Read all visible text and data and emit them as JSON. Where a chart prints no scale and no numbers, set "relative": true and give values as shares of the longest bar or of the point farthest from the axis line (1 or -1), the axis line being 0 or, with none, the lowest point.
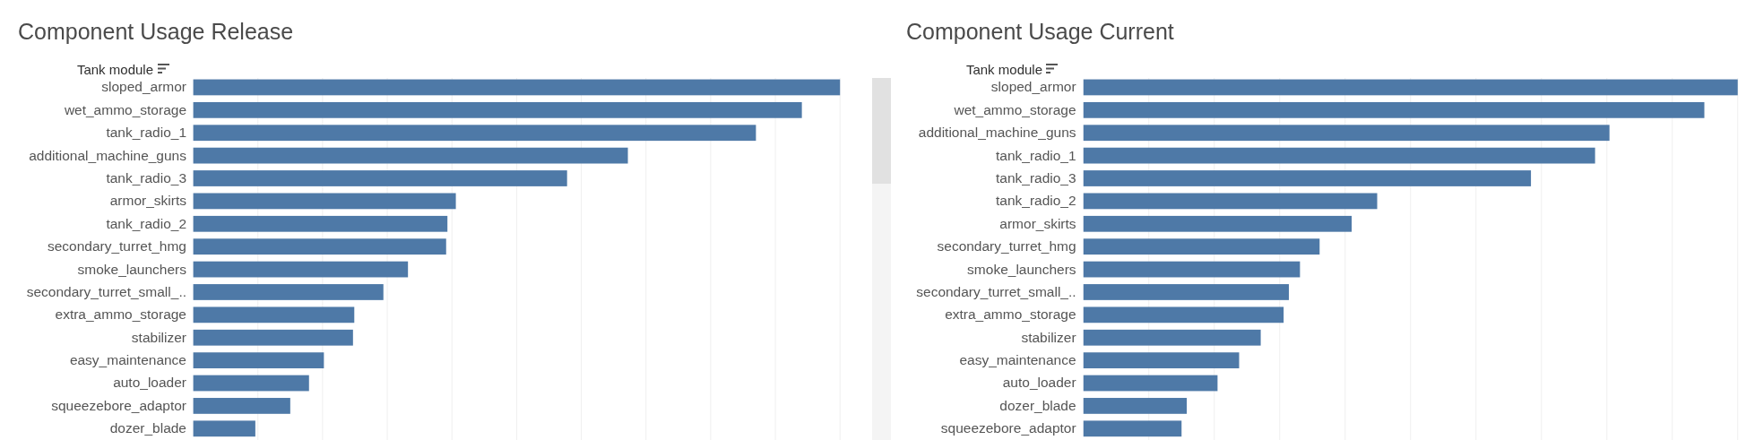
{
  "chart_data": [
    {
      "type": "bar",
      "title": "Component Usage Release",
      "ylabel": "Tank module",
      "orientation": "horizontal",
      "relative": true,
      "categories": [
        "sloped_armor",
        "wet_ammo_storage",
        "tank_radio_1",
        "additional_machine_guns",
        "tank_radio_3",
        "armor_skirts",
        "tank_radio_2",
        "secondary_turret_hmg",
        "smoke_launchers",
        "secondary_turret_small_..",
        "extra_ammo_storage",
        "stabilizer",
        "easy_maintenance",
        "auto_loader",
        "squeezebore_adaptor",
        "dozer_blade"
      ],
      "values": [
        1,
        0.941,
        0.87,
        0.672,
        0.578,
        0.406,
        0.393,
        0.391,
        0.332,
        0.294,
        0.249,
        0.247,
        0.202,
        0.179,
        0.15,
        0.096
      ],
      "color": "#4e79a7",
      "grid": true
    },
    {
      "type": "bar",
      "title": "Component Usage Current",
      "ylabel": "Tank module",
      "orientation": "horizontal",
      "relative": true,
      "categories": [
        "sloped_armor",
        "wet_ammo_storage",
        "additional_machine_guns",
        "tank_radio_1",
        "tank_radio_3",
        "tank_radio_2",
        "armor_skirts",
        "secondary_turret_hmg",
        "smoke_launchers",
        "secondary_turret_small_..",
        "extra_ammo_storage",
        "stabilizer",
        "easy_maintenance",
        "auto_loader",
        "dozer_blade",
        "squeezebore_adaptor"
      ],
      "values": [
        1,
        0.949,
        0.804,
        0.782,
        0.684,
        0.449,
        0.41,
        0.361,
        0.331,
        0.314,
        0.306,
        0.271,
        0.238,
        0.205,
        0.158,
        0.15
      ],
      "color": "#4e79a7",
      "grid": true
    }
  ]
}
